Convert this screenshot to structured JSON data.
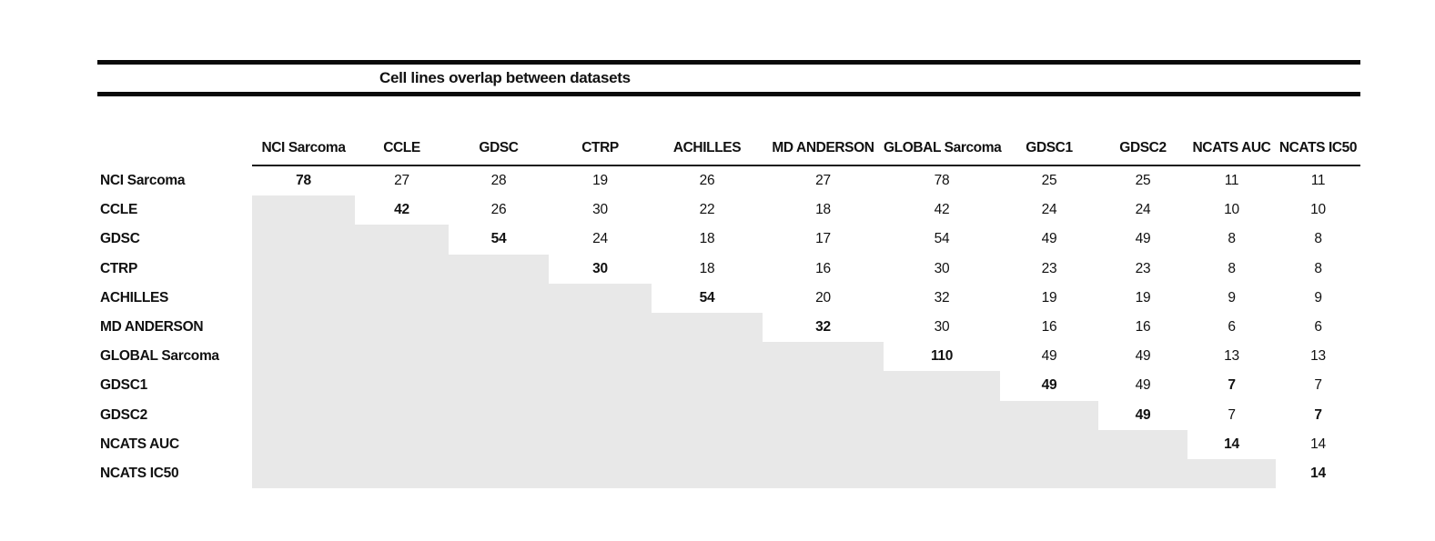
{
  "title": "Cell lines overlap between datasets",
  "colors": {
    "shade": "#e8e8e8",
    "rule": "#0a0a0a",
    "text": "#111111"
  },
  "matrix": {
    "columns": [
      "NCI Sarcoma",
      "CCLE",
      "GDSC",
      "CTRP",
      "ACHILLES",
      "MD ANDERSON",
      "GLOBAL Sarcoma",
      "GDSC1",
      "GDSC2",
      "NCATS AUC",
      "NCATS IC50"
    ],
    "rows": [
      {
        "label": "NCI Sarcoma",
        "cells": [
          "78",
          "27",
          "28",
          "19",
          "26",
          "27",
          "78",
          "25",
          "25",
          "11",
          "11"
        ],
        "bold": [
          0
        ]
      },
      {
        "label": "CCLE",
        "cells": [
          null,
          "42",
          "26",
          "30",
          "22",
          "18",
          "42",
          "24",
          "24",
          "10",
          "10"
        ],
        "bold": [
          1
        ]
      },
      {
        "label": "GDSC",
        "cells": [
          null,
          null,
          "54",
          "24",
          "18",
          "17",
          "54",
          "49",
          "49",
          "8",
          "8"
        ],
        "bold": [
          2
        ]
      },
      {
        "label": "CTRP",
        "cells": [
          null,
          null,
          null,
          "30",
          "18",
          "16",
          "30",
          "23",
          "23",
          "8",
          "8"
        ],
        "bold": [
          3
        ]
      },
      {
        "label": "ACHILLES",
        "cells": [
          null,
          null,
          null,
          null,
          "54",
          "20",
          "32",
          "19",
          "19",
          "9",
          "9"
        ],
        "bold": [
          4
        ]
      },
      {
        "label": "MD ANDERSON",
        "cells": [
          null,
          null,
          null,
          null,
          null,
          "32",
          "30",
          "16",
          "16",
          "6",
          "6"
        ],
        "bold": [
          5
        ]
      },
      {
        "label": "GLOBAL Sarcoma",
        "cells": [
          null,
          null,
          null,
          null,
          null,
          null,
          "110",
          "49",
          "49",
          "13",
          "13"
        ],
        "bold": [
          6
        ]
      },
      {
        "label": "GDSC1",
        "cells": [
          null,
          null,
          null,
          null,
          null,
          null,
          null,
          "49",
          "49",
          "7",
          "7"
        ],
        "bold": [
          7,
          9
        ]
      },
      {
        "label": "GDSC2",
        "cells": [
          null,
          null,
          null,
          null,
          null,
          null,
          null,
          null,
          "49",
          "7",
          "7"
        ],
        "bold": [
          8,
          10
        ]
      },
      {
        "label": "NCATS AUC",
        "cells": [
          null,
          null,
          null,
          null,
          null,
          null,
          null,
          null,
          null,
          "14",
          "14"
        ],
        "bold": [
          9
        ]
      },
      {
        "label": "NCATS IC50",
        "cells": [
          null,
          null,
          null,
          null,
          null,
          null,
          null,
          null,
          null,
          null,
          "14"
        ],
        "bold": [
          10
        ]
      }
    ]
  }
}
